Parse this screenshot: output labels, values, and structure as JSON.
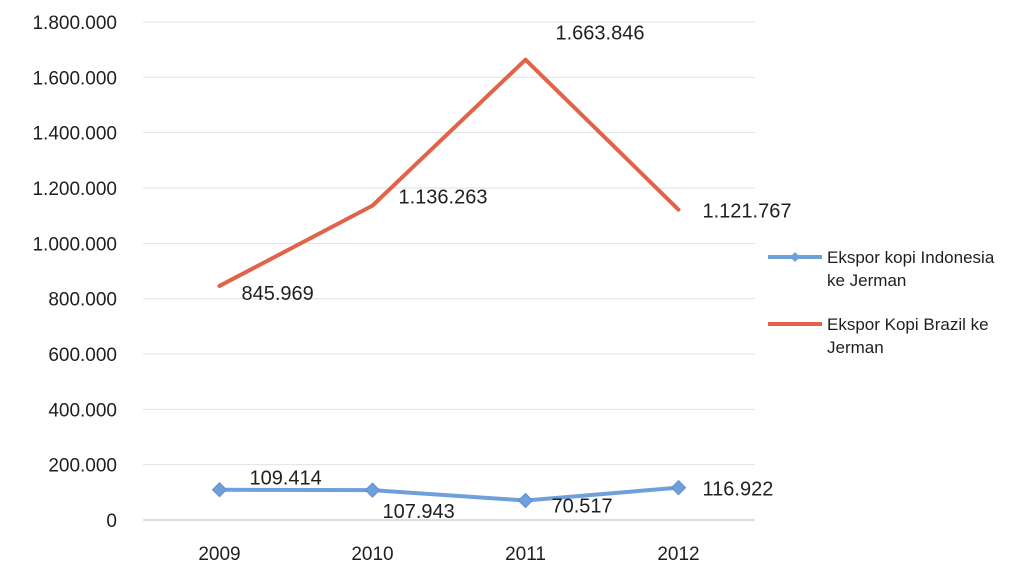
{
  "chart_data": {
    "type": "line",
    "title": "",
    "xlabel": "",
    "ylabel": "",
    "categories": [
      "2009",
      "2010",
      "2011",
      "2012"
    ],
    "ylim": [
      0,
      1800000
    ],
    "yticks": [
      0,
      200000,
      400000,
      600000,
      800000,
      1000000,
      1200000,
      1400000,
      1600000,
      1800000
    ],
    "ytick_labels": [
      "0",
      "200.000",
      "400.000",
      "600.000",
      "800.000",
      "1.000.000",
      "1.200.000",
      "1.400.000",
      "1.600.000",
      "1.800.000"
    ],
    "grid": true,
    "legend_position": "right",
    "series": [
      {
        "name": "Ekspor kopi Indonesia ke Jerman",
        "legend_lines": [
          "Ekspor kopi Indonesia",
          "ke Jerman"
        ],
        "color": "#6fa0dc",
        "marker": "diamond",
        "values": [
          109414,
          107943,
          70517,
          116922
        ],
        "data_labels": [
          "109.414",
          "107.943",
          "70.517",
          "116.922"
        ]
      },
      {
        "name": "Ekspor Kopi Brazil ke Jerman",
        "legend_lines": [
          "Ekspor Kopi Brazil ke",
          "Jerman"
        ],
        "color": "#e0634a",
        "marker": "none",
        "values": [
          845969,
          1136263,
          1663846,
          1121767
        ],
        "data_labels": [
          "845.969",
          "1.136.263",
          "1.663.846",
          "1.121.767"
        ]
      }
    ]
  }
}
